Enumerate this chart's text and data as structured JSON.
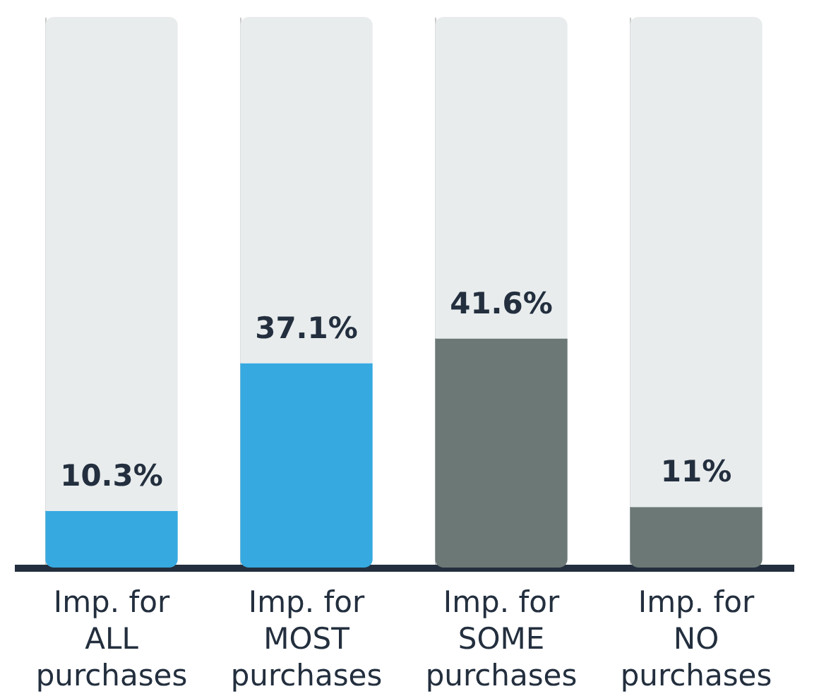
{
  "chart_data": {
    "type": "bar",
    "stacked": true,
    "grid": "x",
    "categories": [
      "Imp. for ALL purchases",
      "Imp. for MOST purchases",
      "Imp. for SOME purchases",
      "Imp. for NO purchases"
    ],
    "ylim": [
      0,
      100
    ],
    "tick_labels": "x",
    "series": [
      {
        "colors": [
          "#37a9e1",
          "#37a9e1",
          "#6b7876",
          "#6b7876"
        ],
        "values": [
          10.3,
          37.1,
          41.6,
          11
        ],
        "value_labels": [
          "10.3%",
          "37.1%",
          "41.6%",
          "11%"
        ]
      },
      {
        "color": "#e8eced",
        "values": [
          89.7,
          62.9,
          58.4,
          89
        ]
      }
    ]
  }
}
